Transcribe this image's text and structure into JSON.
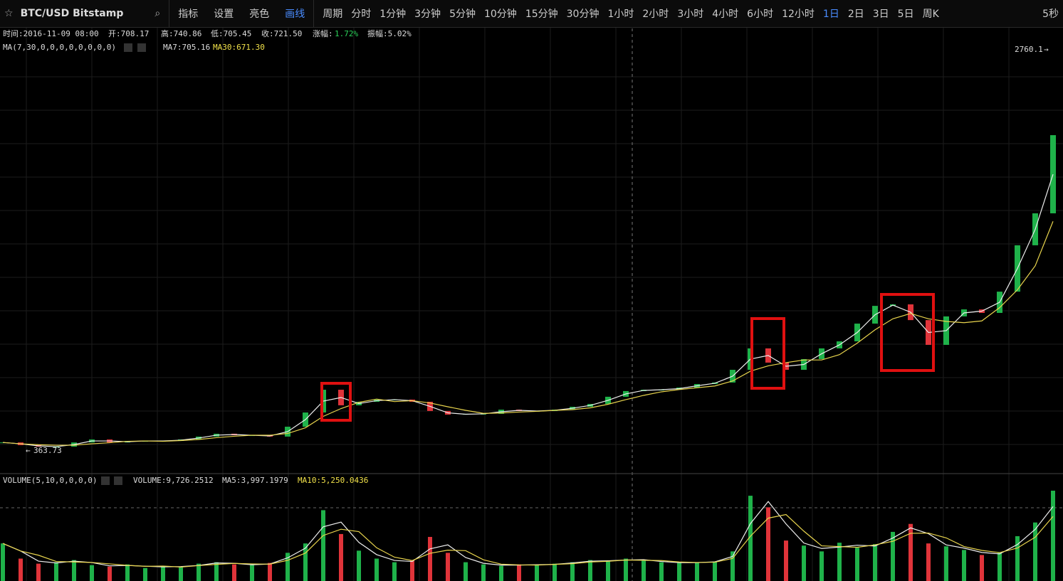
{
  "toolbar": {
    "symbol": "BTC/USD Bitstamp",
    "tools": [
      "指标",
      "设置",
      "亮色",
      "画线"
    ],
    "period_menu": "周期",
    "periods": [
      "分时",
      "1分钟",
      "3分钟",
      "5分钟",
      "10分钟",
      "15分钟",
      "30分钟",
      "1小时",
      "2小时",
      "3小时",
      "4小时",
      "6小时",
      "12小时",
      "1日",
      "2日",
      "3日",
      "5日",
      "周K"
    ],
    "right": "5秒"
  },
  "info": {
    "time": "时间:2016-11-09 08:00",
    "open": "开:708.17",
    "high": "高:740.86",
    "low": "低:705.45",
    "close": "收:721.50",
    "change_label": "涨幅:",
    "change": "1.72%",
    "amplitude": "振幅:5.02%"
  },
  "ma_legend": {
    "name": "MA(7,30,0,0,0,0,0,0,0,0)",
    "ma7": "MA7:705.16",
    "ma30": "MA30:671.30"
  },
  "volume_legend": {
    "name": "VOLUME(5,10,0,0,0,0)",
    "volume": "VOLUME:9,726.2512",
    "ma5": "MA5:3,997.1979",
    "ma10": "MA10:5,250.0436"
  },
  "price": {
    "high_marker": 2760.1,
    "low_marker": 363.73,
    "closes": [
      414,
      398,
      389,
      389,
      414,
      432,
      414,
      423,
      423,
      423,
      432,
      449,
      466,
      457,
      457,
      449,
      508,
      593,
      729,
      636,
      657,
      670,
      670,
      657,
      602,
      580,
      585,
      585,
      610,
      602,
      602,
      610,
      627,
      644,
      687,
      721,
      729,
      729,
      742,
      763,
      772,
      848,
      976,
      891,
      848,
      912,
      976,
      1018,
      1124,
      1230,
      1239,
      1145,
      997,
      1167,
      1209,
      1188,
      1315,
      1592,
      1783,
      2250
    ],
    "volumes": [
      5200,
      3100,
      2400,
      2600,
      2900,
      2200,
      2000,
      2300,
      1800,
      2100,
      1900,
      2400,
      2600,
      2300,
      2200,
      2500,
      3900,
      5200,
      9800,
      6500,
      4200,
      3100,
      2600,
      2800,
      6100,
      3900,
      2600,
      2300,
      2100,
      2300,
      2200,
      2400,
      2600,
      2900,
      2700,
      3100,
      2800,
      2600,
      2500,
      2600,
      2700,
      4100,
      11800,
      10200,
      5600,
      4900,
      4100,
      5300,
      4600,
      5100,
      6800,
      7900,
      5200,
      4800,
      4300,
      3600,
      3900,
      6200,
      8100,
      12500
    ]
  }
}
